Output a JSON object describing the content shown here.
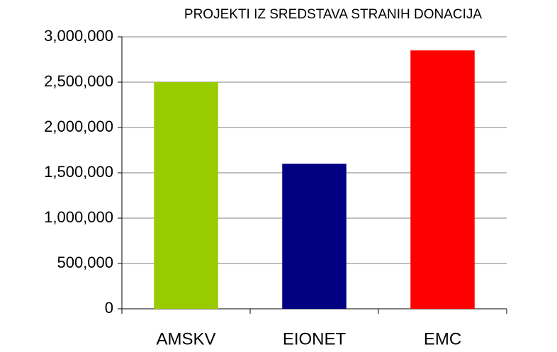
{
  "chart_data": {
    "type": "bar",
    "title": "PROJEKTI IZ SREDSTAVA STRANIH DONACIJA",
    "categories": [
      "AMSKV",
      "EIONET",
      "EMC"
    ],
    "values": [
      2500000,
      1600000,
      2850000
    ],
    "colors": [
      "#99cc00",
      "#000080",
      "#ff0000"
    ],
    "ylim": [
      0,
      3000000
    ],
    "yticks": [
      0,
      {
        "value": 500000,
        "label": "500,000"
      },
      {
        "value": 1000000,
        "label": "1,000,000"
      },
      {
        "value": 1500000,
        "label": "1,500,000"
      },
      {
        "value": 2000000,
        "label": "2,000,000"
      },
      {
        "value": 2500000,
        "label": "2,500,000"
      },
      {
        "value": 3000000,
        "label": "3,000,000"
      }
    ],
    "grid": true
  }
}
